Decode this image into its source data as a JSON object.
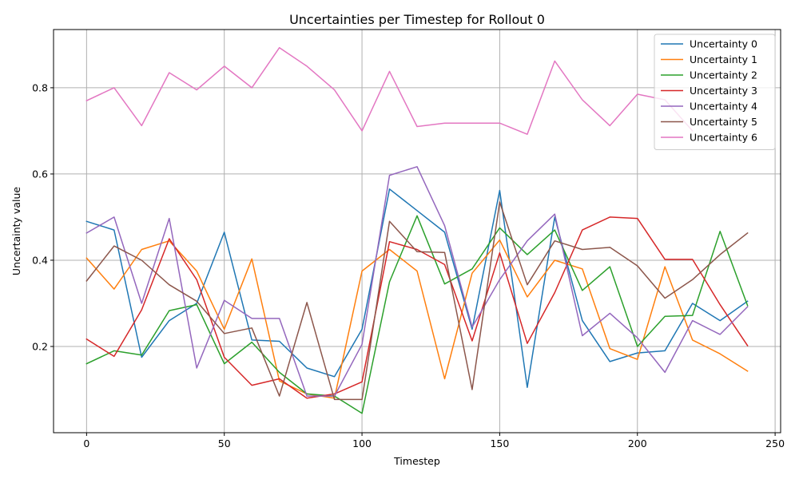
{
  "chart_data": {
    "type": "line",
    "title": "Uncertainties per Timestep for Rollout 0",
    "xlabel": "Timestep",
    "ylabel": "Uncertainty value",
    "xlim": [
      -12,
      252
    ],
    "ylim": [
      0.0,
      0.935
    ],
    "xticks": [
      0,
      50,
      100,
      150,
      200,
      250
    ],
    "yticks": [
      0.2,
      0.4,
      0.6,
      0.8
    ],
    "xtick_labels": [
      "0",
      "50",
      "100",
      "150",
      "200",
      "250"
    ],
    "ytick_labels": [
      "0.2",
      "0.4",
      "0.6",
      "0.8"
    ],
    "grid": true,
    "legend_position": "top-right",
    "x": [
      0,
      10,
      20,
      30,
      40,
      50,
      60,
      70,
      80,
      90,
      100,
      110,
      120,
      130,
      140,
      150,
      160,
      170,
      180,
      190,
      200,
      210,
      220,
      230,
      240
    ],
    "series": [
      {
        "name": "Uncertainty 0",
        "color": "#1f77b4",
        "values": [
          0.49,
          0.47,
          0.175,
          0.26,
          0.3,
          0.465,
          0.215,
          0.212,
          0.15,
          0.13,
          0.24,
          0.565,
          0.515,
          0.465,
          0.24,
          0.562,
          0.105,
          0.5,
          0.26,
          0.165,
          0.185,
          0.19,
          0.3,
          0.26,
          0.305
        ]
      },
      {
        "name": "Uncertainty 1",
        "color": "#ff7f0e",
        "values": [
          0.405,
          0.333,
          0.425,
          0.445,
          0.375,
          0.24,
          0.403,
          0.12,
          0.09,
          0.08,
          0.375,
          0.425,
          0.375,
          0.125,
          0.37,
          0.447,
          0.315,
          0.4,
          0.38,
          0.195,
          0.17,
          0.385,
          0.215,
          0.183,
          0.143
        ]
      },
      {
        "name": "Uncertainty 2",
        "color": "#2ca02c",
        "values": [
          0.16,
          0.19,
          0.18,
          0.283,
          0.297,
          0.16,
          0.21,
          0.14,
          0.09,
          0.085,
          0.045,
          0.35,
          0.503,
          0.345,
          0.38,
          0.475,
          0.413,
          0.47,
          0.33,
          0.385,
          0.2,
          0.27,
          0.272,
          0.467,
          0.295
        ]
      },
      {
        "name": "Uncertainty 3",
        "color": "#d62728",
        "values": [
          0.217,
          0.177,
          0.285,
          0.45,
          0.355,
          0.175,
          0.11,
          0.125,
          0.08,
          0.09,
          0.118,
          0.443,
          0.425,
          0.39,
          0.213,
          0.417,
          0.207,
          0.325,
          0.47,
          0.5,
          0.497,
          0.402,
          0.402,
          0.297,
          0.202
        ]
      },
      {
        "name": "Uncertainty 4",
        "color": "#9467bd",
        "values": [
          0.463,
          0.5,
          0.3,
          0.497,
          0.15,
          0.307,
          0.265,
          0.265,
          0.085,
          0.085,
          0.205,
          0.597,
          0.617,
          0.48,
          0.245,
          0.355,
          0.445,
          0.507,
          0.225,
          0.277,
          0.22,
          0.14,
          0.26,
          0.228,
          0.292
        ]
      },
      {
        "name": "Uncertainty 5",
        "color": "#8c564b",
        "values": [
          0.352,
          0.433,
          0.4,
          0.343,
          0.305,
          0.23,
          0.243,
          0.085,
          0.302,
          0.077,
          0.077,
          0.49,
          0.42,
          0.418,
          0.1,
          0.535,
          0.343,
          0.445,
          0.425,
          0.43,
          0.387,
          0.312,
          0.355,
          0.413,
          0.463
        ]
      },
      {
        "name": "Uncertainty 6",
        "color": "#e377c2",
        "values": [
          0.77,
          0.8,
          0.712,
          0.835,
          0.795,
          0.85,
          0.8,
          0.893,
          0.85,
          0.795,
          0.7,
          0.838,
          0.71,
          0.718,
          0.718,
          0.718,
          0.692,
          0.862,
          0.772,
          0.712,
          0.785,
          0.772,
          0.7,
          null,
          null
        ]
      }
    ]
  }
}
